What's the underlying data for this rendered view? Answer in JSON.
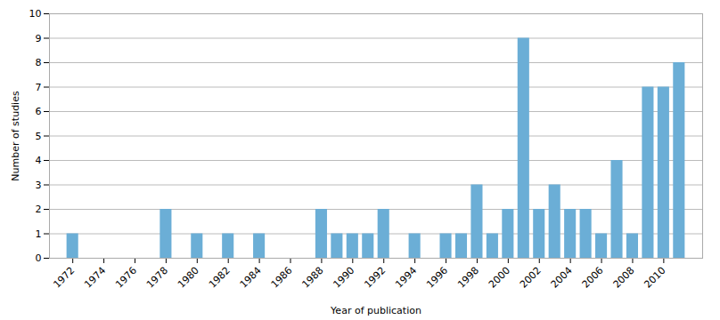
{
  "chart_data": {
    "type": "bar",
    "x": [
      1972,
      1973,
      1974,
      1975,
      1976,
      1977,
      1978,
      1979,
      1980,
      1981,
      1982,
      1983,
      1984,
      1985,
      1986,
      1987,
      1988,
      1989,
      1990,
      1991,
      1992,
      1993,
      1994,
      1995,
      1996,
      1997,
      1998,
      1999,
      2000,
      2001,
      2002,
      2003,
      2004,
      2005,
      2006,
      2007,
      2008,
      2009,
      2010,
      2011
    ],
    "values": [
      1,
      0,
      0,
      0,
      0,
      0,
      2,
      0,
      1,
      0,
      1,
      0,
      1,
      0,
      0,
      0,
      2,
      1,
      1,
      1,
      2,
      0,
      1,
      0,
      1,
      1,
      3,
      1,
      2,
      9,
      2,
      3,
      2,
      2,
      1,
      4,
      1,
      7,
      7,
      8
    ],
    "color": "#6baed6",
    "xlabel": "Year of publication",
    "ylabel": "Number of studies",
    "xlim": [
      1970.5,
      2012.5
    ],
    "xticks": [
      1972,
      1974,
      1976,
      1978,
      1980,
      1982,
      1984,
      1986,
      1988,
      1990,
      1992,
      1994,
      1996,
      1998,
      2000,
      2002,
      2004,
      2006,
      2008,
      2010
    ],
    "ylim": [
      0,
      10
    ],
    "yticks": [
      0,
      1,
      2,
      3,
      4,
      5,
      6,
      7,
      8,
      9,
      10
    ],
    "grid": true
  }
}
